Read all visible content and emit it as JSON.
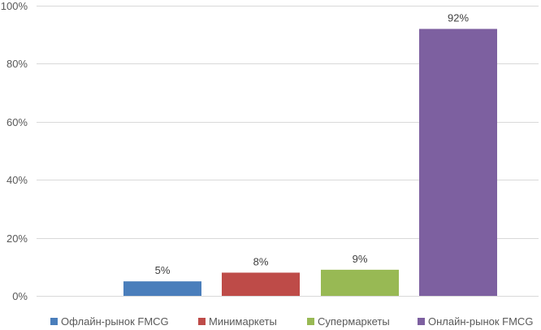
{
  "chart_data": {
    "type": "bar",
    "title": "",
    "xlabel": "",
    "ylabel": "",
    "ylim": [
      0,
      100
    ],
    "yticks": [
      {
        "value": 0,
        "label": "0%"
      },
      {
        "value": 20,
        "label": "20%"
      },
      {
        "value": 40,
        "label": "40%"
      },
      {
        "value": 60,
        "label": "60%"
      },
      {
        "value": 80,
        "label": "80%"
      },
      {
        "value": 100,
        "label": "100%"
      }
    ],
    "grid": true,
    "legend_position": "bottom",
    "series": [
      {
        "name": "Офлайн-рынок FMCG",
        "value": 5,
        "label": "5%",
        "color": "#4a7ebb"
      },
      {
        "name": "Минимаркеты",
        "value": 8,
        "label": "8%",
        "color": "#be4b48"
      },
      {
        "name": "Супермаркеты",
        "value": 9,
        "label": "9%",
        "color": "#98b954"
      },
      {
        "name": "Онлайн-рынок FMCG",
        "value": 92,
        "label": "92%",
        "color": "#7d60a0"
      }
    ]
  }
}
